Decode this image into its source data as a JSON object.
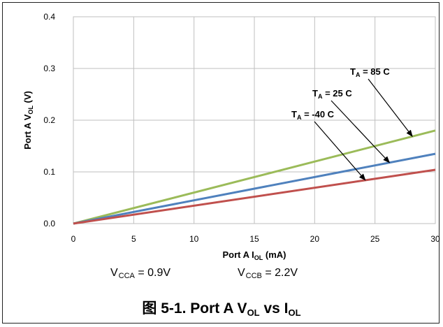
{
  "chart_data": {
    "type": "line",
    "x_axis": {
      "label_main": "Port A I",
      "label_sub": "OL",
      "label_unit": "(mA)",
      "min": 0,
      "max": 30,
      "ticks": [
        0,
        5,
        10,
        15,
        20,
        25,
        30
      ],
      "tick_labels": [
        "0",
        "5",
        "10",
        "15",
        "20",
        "25",
        "30"
      ]
    },
    "y_axis": {
      "label_main": "Port A V",
      "label_sub": "OL",
      "label_unit": "(V)",
      "min": 0,
      "max": 0.4,
      "ticks": [
        0,
        0.1,
        0.2,
        0.3,
        0.4
      ],
      "tick_labels": [
        "0.0",
        "0.1",
        "0.2",
        "0.3",
        "0.4"
      ]
    },
    "grid": true,
    "series": [
      {
        "name": "T_A = 85 C",
        "label_prefix": "T",
        "label_sub": "A",
        "label_rest": " = 85 C",
        "color": "#9bbb59",
        "x": [
          0,
          30
        ],
        "y": [
          0,
          0.18
        ],
        "arrow_target_x": 28.1
      },
      {
        "name": "T_A = 25 C",
        "label_prefix": "T",
        "label_sub": "A",
        "label_rest": " = 25 C",
        "color": "#4f81bd",
        "x": [
          0,
          30
        ],
        "y": [
          0,
          0.135
        ],
        "arrow_target_x": 26.2
      },
      {
        "name": "T_A = -40 C",
        "label_prefix": "T",
        "label_sub": "A",
        "label_rest": " = -40 C",
        "color": "#c0504d",
        "x": [
          0,
          30
        ],
        "y": [
          0,
          0.104
        ],
        "arrow_target_x": 24.2
      }
    ]
  },
  "conditions": {
    "vcca_main": "V",
    "vcca_sub": "CCA",
    "vcca_rest": " = 0.9V",
    "vccb_main": "V",
    "vccb_sub": "CCB",
    "vccb_rest": " = 2.2V"
  },
  "caption": {
    "prefix": "图 5-1. Port A V",
    "sub1": "OL",
    "middle": " vs I",
    "sub2": "OL"
  }
}
